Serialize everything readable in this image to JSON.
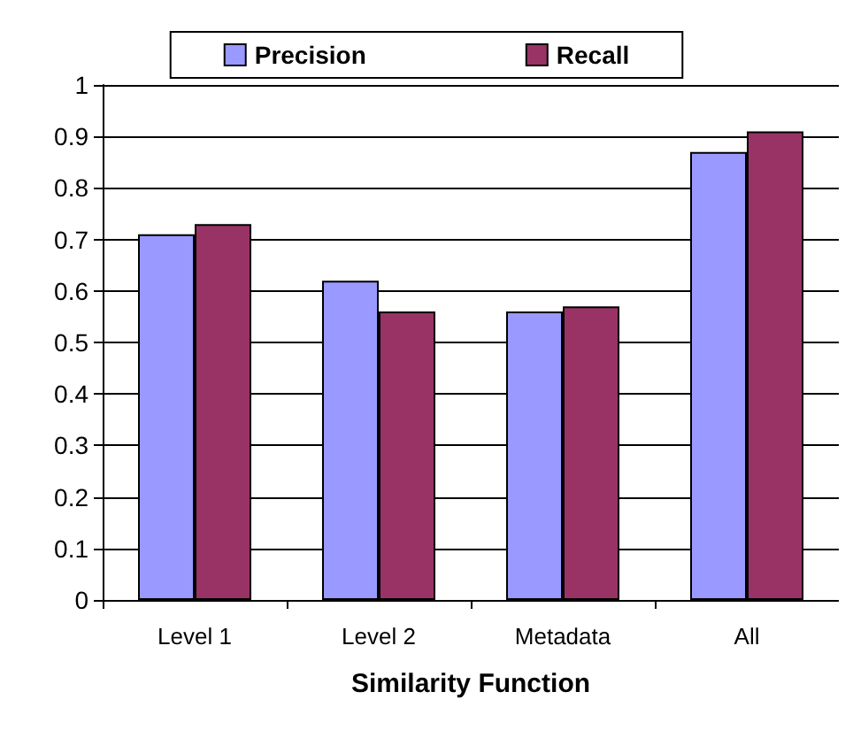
{
  "chart_data": {
    "type": "bar",
    "xlabel": "Similarity Function",
    "categories": [
      "Level 1",
      "Level 2",
      "Metadata",
      "All"
    ],
    "series": [
      {
        "name": "Precision",
        "color": "#9999ff",
        "values": [
          0.71,
          0.62,
          0.56,
          0.87
        ]
      },
      {
        "name": "Recall",
        "color": "#993366",
        "values": [
          0.73,
          0.56,
          0.57,
          0.91
        ]
      }
    ],
    "ylim": [
      0,
      1
    ],
    "yticks": [
      0,
      0.1,
      0.2,
      0.3,
      0.4,
      0.5,
      0.6,
      0.7,
      0.8,
      0.9,
      1
    ],
    "grid": "y",
    "legend": "top"
  }
}
